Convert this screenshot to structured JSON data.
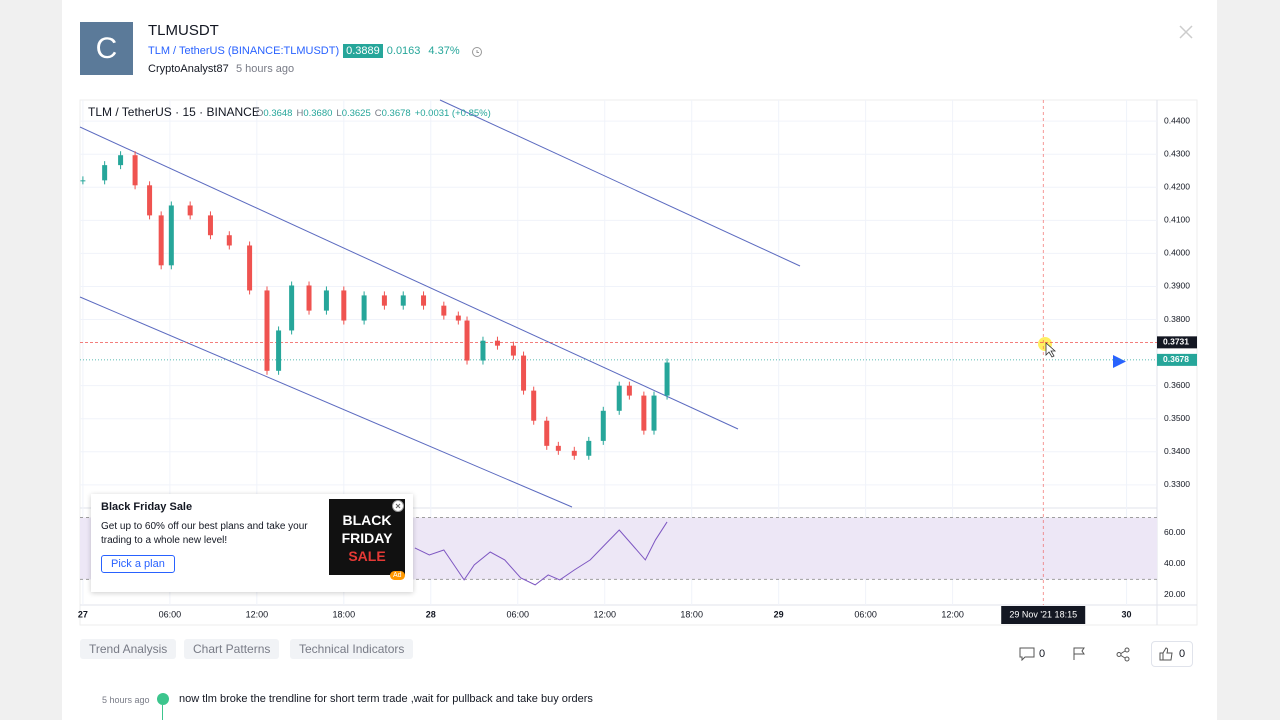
{
  "header": {
    "avatar": "C",
    "title": "TLMUSDT",
    "symbol": "TLM / TetherUS (BINANCE:TLMUSDT)",
    "price": "0.3889",
    "change": "0.0163",
    "change_pct": "4.37%",
    "author": "CryptoAnalyst87",
    "time": "5 hours ago"
  },
  "chart_data": [
    {
      "type": "candlestick",
      "title": "TLM / TetherUS · 15 · BINANCE",
      "ohlc": [
        {
          "label": "O",
          "value": 0.3648
        },
        {
          "label": "H",
          "value": 0.368
        },
        {
          "label": "L",
          "value": 0.3625
        },
        {
          "label": "C",
          "value": 0.3678
        }
      ],
      "ohlc_labels": [
        "0.3648",
        "0.3680",
        "0.3625",
        "0.3678"
      ],
      "change": "+0.0031 (+0.85%)",
      "x": [
        0,
        1.5,
        2.6,
        3.6,
        4.6,
        5.4,
        6.1,
        7.4,
        8.8,
        10.1,
        11.5,
        12.7,
        13.5,
        14.4,
        15.6,
        16.8,
        18.0,
        19.4,
        20.8,
        22.1,
        23.5,
        24.9,
        25.9,
        26.5,
        27.6,
        28.6,
        29.7,
        30.4,
        31.1,
        32.0,
        32.8,
        33.9,
        34.9,
        35.9,
        37.0,
        37.7,
        38.7,
        39.4,
        40.3
      ],
      "values": [
        0.4221,
        0.4267,
        0.4297,
        0.4206,
        0.4115,
        0.3964,
        0.4145,
        0.4115,
        0.4055,
        0.4024,
        0.3888,
        0.3645,
        0.3767,
        0.3903,
        0.3827,
        0.3888,
        0.3797,
        0.3873,
        0.3842,
        0.3873,
        0.3842,
        0.3812,
        0.3797,
        0.3676,
        0.3736,
        0.3721,
        0.3691,
        0.3585,
        0.3494,
        0.3418,
        0.3403,
        0.3388,
        0.3433,
        0.3524,
        0.36,
        0.357,
        0.3464,
        0.357,
        0.367
      ],
      "up_color": "#26a69a",
      "down_color": "#ef5350",
      "xlim": [
        -0.2,
        74.1
      ],
      "xticks": [
        {
          "value": 0,
          "label": "27"
        },
        {
          "value": 6,
          "label": "06:00"
        },
        {
          "value": 12,
          "label": "12:00"
        },
        {
          "value": 18,
          "label": "18:00"
        },
        {
          "value": 24,
          "label": "28"
        },
        {
          "value": 30,
          "label": "06:00"
        },
        {
          "value": 36,
          "label": "12:00"
        },
        {
          "value": 42,
          "label": "18:00"
        },
        {
          "value": 48,
          "label": "29"
        },
        {
          "value": 54,
          "label": "06:00"
        },
        {
          "value": 60,
          "label": "12:00"
        },
        {
          "value": 72,
          "label": "30"
        }
      ],
      "ylim": [
        0.323,
        0.4464
      ],
      "yticks": [
        {
          "value": 0.44,
          "label": "0.4400"
        },
        {
          "value": 0.43,
          "label": "0.4300"
        },
        {
          "value": 0.42,
          "label": "0.4200"
        },
        {
          "value": 0.41,
          "label": "0.4100"
        },
        {
          "value": 0.4,
          "label": "0.4000"
        },
        {
          "value": 0.39,
          "label": "0.3900"
        },
        {
          "value": 0.38,
          "label": "0.3800"
        },
        {
          "value": 0.36,
          "label": "0.3600"
        },
        {
          "value": 0.35,
          "label": "0.3500"
        },
        {
          "value": 0.34,
          "label": "0.3400"
        },
        {
          "value": 0.33,
          "label": "0.3300"
        }
      ],
      "price_markers": [
        {
          "value": 0.3731,
          "color": "#131722",
          "line": "#ef5350"
        },
        {
          "value": 0.3678,
          "color": "#26a69a",
          "line": "#26a69a"
        }
      ],
      "crosshair": {
        "value": 66.25,
        "label": "29 Nov '21 18:15"
      },
      "grid": true
    },
    {
      "type": "line",
      "x": [
        22.9,
        23.9,
        24.9,
        25.6,
        26.3,
        27.0,
        28.1,
        29.1,
        30.2,
        31.2,
        32.1,
        32.9,
        33.9,
        35.0,
        36.0,
        37.0,
        37.9,
        38.8,
        39.5,
        40.3
      ],
      "values": [
        50.3,
        45.8,
        49.0,
        39.4,
        29.7,
        39.4,
        47.7,
        42.6,
        31.0,
        26.5,
        32.9,
        29.7,
        36.1,
        42.6,
        52.3,
        61.9,
        52.3,
        42.6,
        55.5,
        67.1
      ],
      "color": "#7e57c2",
      "band": [
        30,
        70
      ],
      "band_color": "#ede7f6",
      "ylim": [
        13.5,
        76.1
      ],
      "yticks": [
        {
          "value": 60,
          "label": "60.00"
        },
        {
          "value": 40,
          "label": "40.00"
        },
        {
          "value": 20,
          "label": "20.00"
        }
      ]
    }
  ],
  "ad": {
    "title": "Black Friday Sale",
    "text": "Get up to 60% off our best plans and take your trading to a whole new level!",
    "button": "Pick a plan",
    "image_lines": [
      "BLACK",
      "FRIDAY",
      "SALE"
    ],
    "badge": "Ad"
  },
  "tags": [
    "Trend Analysis",
    "Chart Patterns",
    "Technical Indicators"
  ],
  "actions": {
    "comments": 0,
    "likes": 0
  },
  "comment": {
    "time": "5 hours ago",
    "text": "now tlm broke the trendline for short term trade ,wait for pullback and take buy orders"
  }
}
